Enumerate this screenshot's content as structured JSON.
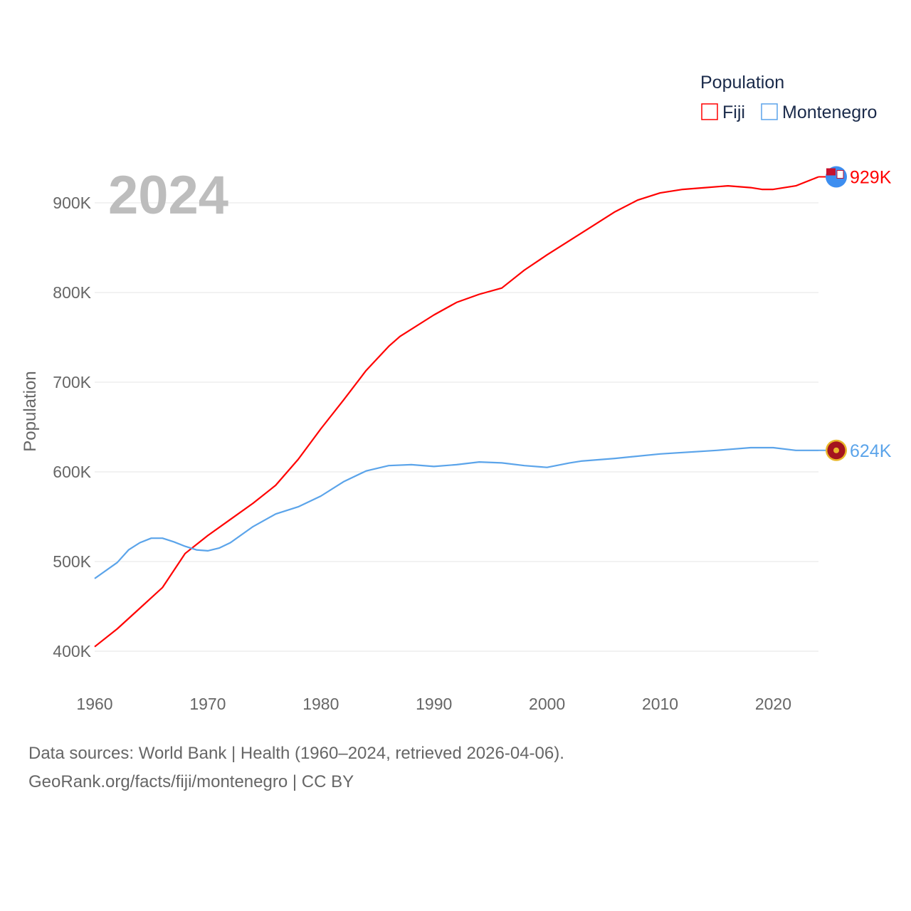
{
  "chart_data": {
    "type": "line",
    "ylabel": "Population",
    "xlabel": "",
    "year_label": "2024",
    "legend": {
      "title": "Population",
      "placement": "top-right"
    },
    "ylim": [
      400000,
      900000
    ],
    "xlim": [
      1960,
      2024
    ],
    "y_ticks": [
      {
        "v": 400000,
        "label": "400K"
      },
      {
        "v": 500000,
        "label": "500K"
      },
      {
        "v": 600000,
        "label": "600K"
      },
      {
        "v": 700000,
        "label": "700K"
      },
      {
        "v": 800000,
        "label": "800K"
      },
      {
        "v": 900000,
        "label": "900K"
      }
    ],
    "x_ticks": [
      {
        "v": 1960,
        "label": "1960"
      },
      {
        "v": 1970,
        "label": "1970"
      },
      {
        "v": 1980,
        "label": "1980"
      },
      {
        "v": 1990,
        "label": "1990"
      },
      {
        "v": 2000,
        "label": "2000"
      },
      {
        "v": 2010,
        "label": "2010"
      },
      {
        "v": 2020,
        "label": "2020"
      }
    ],
    "series": [
      {
        "name": "Fiji",
        "color": "#ff0000",
        "end_label": "929K",
        "flag": "fiji-flag",
        "x": [
          1960,
          1962,
          1964,
          1966,
          1968,
          1970,
          1972,
          1974,
          1976,
          1978,
          1980,
          1982,
          1984,
          1986,
          1987,
          1990,
          1992,
          1994,
          1996,
          1998,
          2000,
          2002,
          2004,
          2006,
          2008,
          2010,
          2012,
          2014,
          2016,
          2018,
          2019,
          2020,
          2022,
          2024
        ],
        "y": [
          405000,
          425000,
          448000,
          471000,
          509000,
          529000,
          547000,
          565000,
          585000,
          614000,
          648000,
          680000,
          713000,
          740000,
          751000,
          775000,
          789000,
          798000,
          805000,
          825000,
          842000,
          858000,
          874000,
          890000,
          903000,
          911000,
          915000,
          917000,
          919000,
          917000,
          915000,
          915000,
          919000,
          929000
        ]
      },
      {
        "name": "Montenegro",
        "color": "#5ba4ea",
        "end_label": "624K",
        "flag": "montenegro-flag",
        "x": [
          1960,
          1962,
          1963,
          1964,
          1965,
          1966,
          1967,
          1968,
          1969,
          1970,
          1971,
          1972,
          1974,
          1976,
          1978,
          1980,
          1982,
          1984,
          1986,
          1988,
          1990,
          1992,
          1994,
          1996,
          1998,
          2000,
          2002,
          2003,
          2006,
          2010,
          2015,
          2018,
          2020,
          2022,
          2024
        ],
        "y": [
          481000,
          499000,
          513000,
          521000,
          526000,
          526000,
          522000,
          517000,
          513000,
          512000,
          515000,
          521000,
          539000,
          553000,
          561000,
          573000,
          589000,
          601000,
          607000,
          608000,
          606000,
          608000,
          611000,
          610000,
          607000,
          605000,
          610000,
          612000,
          615000,
          620000,
          624000,
          627000,
          627000,
          624000,
          624000
        ]
      }
    ]
  },
  "footer": {
    "line1": "Data sources: World Bank | Health (1960–2024, retrieved 2026-04-06).",
    "line2": "GeoRank.org/facts/fiji/montenegro | CC BY"
  }
}
